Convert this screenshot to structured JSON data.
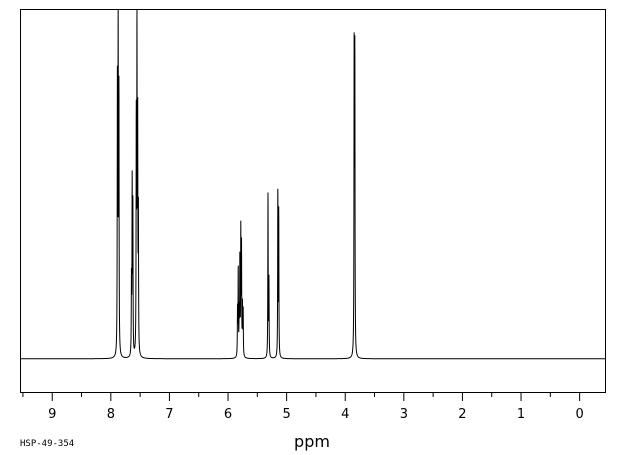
{
  "chart_data": {
    "type": "line",
    "xlabel": "ppm",
    "spectrum_id": "HSP-49-354",
    "xlim": [
      9.55,
      -0.45
    ],
    "ylim": [
      -0.1,
      1.05
    ],
    "x_reversed": true,
    "grid": false,
    "ticks": [
      9,
      8,
      7,
      6,
      5,
      4,
      3,
      2,
      1,
      0
    ],
    "tick_labels": [
      "9",
      "8",
      "7",
      "6",
      "5",
      "4",
      "3",
      "2",
      "1",
      "0"
    ],
    "baseline": 0,
    "peaks": [
      {
        "x": 7.888,
        "y": 0.8
      },
      {
        "x": 7.875,
        "y": 1.0
      },
      {
        "x": 7.862,
        "y": 0.78
      },
      {
        "x": 7.648,
        "y": 0.22
      },
      {
        "x": 7.636,
        "y": 0.51
      },
      {
        "x": 7.624,
        "y": 0.44
      },
      {
        "x": 7.566,
        "y": 0.69
      },
      {
        "x": 7.554,
        "y": 0.96
      },
      {
        "x": 7.542,
        "y": 0.68
      },
      {
        "x": 7.53,
        "y": 0.42
      },
      {
        "x": 5.838,
        "y": 0.14
      },
      {
        "x": 5.826,
        "y": 0.26
      },
      {
        "x": 5.81,
        "y": 0.13
      },
      {
        "x": 5.798,
        "y": 0.29
      },
      {
        "x": 5.782,
        "y": 0.37
      },
      {
        "x": 5.77,
        "y": 0.32
      },
      {
        "x": 5.754,
        "y": 0.15
      },
      {
        "x": 5.742,
        "y": 0.14
      },
      {
        "x": 5.318,
        "y": 0.5
      },
      {
        "x": 5.302,
        "y": 0.23
      },
      {
        "x": 5.15,
        "y": 0.5
      },
      {
        "x": 5.135,
        "y": 0.44
      },
      {
        "x": 3.848,
        "y": 0.91
      },
      {
        "x": 3.836,
        "y": 0.88
      },
      {
        "x": 3.842,
        "y": 0.12
      }
    ]
  }
}
